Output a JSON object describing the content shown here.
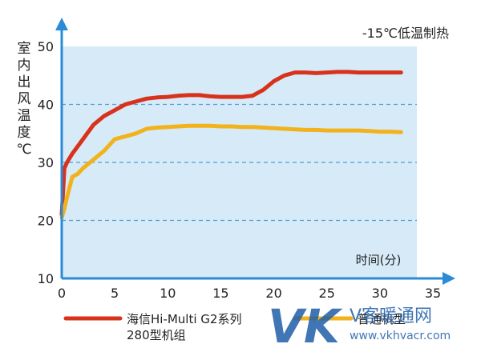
{
  "chart_data": {
    "type": "line",
    "condition_label": "-15℃低温制热",
    "ylabel_lines": [
      "室",
      "内",
      "出",
      "风",
      "温",
      "度",
      "℃"
    ],
    "xlabel": "时间(分)",
    "xlim": [
      0,
      35
    ],
    "ylim": [
      10,
      50
    ],
    "x_ticks": [
      "0",
      "5",
      "10",
      "15",
      "20",
      "25",
      "30",
      "35"
    ],
    "y_ticks": [
      "10",
      "20",
      "30",
      "40",
      "50"
    ],
    "dashed_gridlines_y": [
      20,
      30,
      40
    ],
    "colors": {
      "plot_bg": "#d6ebf7",
      "axis": "#2a8bd6",
      "grid": "#4f9bd6",
      "series_red": "#d8321c",
      "series_orange": "#f2b21c"
    },
    "series": [
      {
        "name": "海信Hi-Multi G2系列 280型机组",
        "color": "#d8321c",
        "x": [
          0,
          0.25,
          0.5,
          1,
          2,
          3,
          4,
          5,
          6,
          7,
          8,
          9,
          10,
          11,
          12,
          13,
          14,
          15,
          16,
          17,
          18,
          19,
          20,
          21,
          22,
          23,
          24,
          25,
          26,
          27,
          28,
          29,
          30,
          31,
          32
        ],
        "y": [
          21,
          29,
          30,
          31.5,
          34,
          36.5,
          38,
          39,
          40,
          40.5,
          41,
          41.2,
          41.3,
          41.5,
          41.6,
          41.6,
          41.4,
          41.3,
          41.3,
          41.3,
          41.5,
          42.5,
          44,
          45,
          45.5,
          45.5,
          45.4,
          45.5,
          45.6,
          45.6,
          45.5,
          45.5,
          45.5,
          45.5,
          45.5
        ]
      },
      {
        "name": "",
        "color": "#f2b21c",
        "x": [
          0,
          0.25,
          0.5,
          1,
          1.5,
          2,
          3,
          4,
          5,
          6,
          7,
          8,
          9,
          10,
          11,
          12,
          13,
          14,
          15,
          16,
          17,
          18,
          19,
          20,
          21,
          22,
          23,
          24,
          25,
          26,
          27,
          28,
          29,
          30,
          31,
          32
        ],
        "y": [
          20.5,
          22,
          24,
          27.5,
          28,
          29,
          30.5,
          32,
          34,
          34.5,
          35,
          35.8,
          36,
          36.1,
          36.2,
          36.3,
          36.3,
          36.3,
          36.2,
          36.2,
          36.1,
          36.1,
          36,
          35.9,
          35.8,
          35.7,
          35.6,
          35.6,
          35.5,
          35.5,
          35.5,
          35.5,
          35.4,
          35.3,
          35.3,
          35.2
        ]
      }
    ],
    "legend": {
      "red_line1": "海信Hi-Multi G2系列",
      "red_line2": "280型机组",
      "orange_label": "普通机型"
    }
  },
  "watermark": {
    "logo": "VK",
    "site_name": "V客暖通网",
    "url": "www.vkhvacr.com"
  }
}
